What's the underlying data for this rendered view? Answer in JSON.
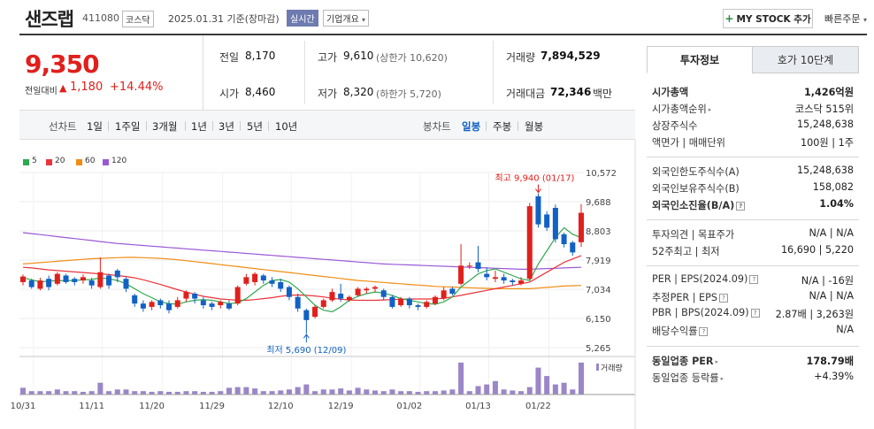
{
  "header": {
    "name": "샌즈랩",
    "code": "411080",
    "market": "코스닥",
    "date": "2025.01.31 기준(장마감)",
    "live": "실시간",
    "company_overview": "기업개요",
    "mystock_button": "MY STOCK 추가",
    "quick_order": "빠른주문"
  },
  "price": {
    "current": "9,350",
    "change_label": "전일대비",
    "change": "1,180",
    "change_pct": "+14.44%"
  },
  "info": {
    "prev_label": "전일",
    "prev": "8,170",
    "open_label": "시가",
    "open": "8,460",
    "high_label": "고가",
    "high": "9,610",
    "upper_limit": "(상한가 10,620)",
    "low_label": "저가",
    "low": "8,320",
    "lower_limit": "(하한가 5,720)",
    "volume_label": "거래량",
    "volume": "7,894,529",
    "amount_label": "거래대금",
    "amount": "72,346",
    "amount_unit": "백만"
  },
  "period_bar": {
    "line_label": "선차트",
    "line_items": [
      "1일",
      "1주일",
      "3개월",
      "1년",
      "3년",
      "5년",
      "10년"
    ],
    "candle_label": "봉차트",
    "candle_items": [
      "일봉",
      "주봉",
      "월봉"
    ],
    "candle_active": "일봉"
  },
  "colors": {
    "up": "#e0201c",
    "down": "#1261c4",
    "ma5": "#2fa84f",
    "ma20": "#e8343a",
    "ma60": "#f08c14",
    "ma120": "#9a58d6",
    "volume": "#9b86c8"
  },
  "chart_data": {
    "type": "candlestick",
    "legend": [
      "5",
      "20",
      "60",
      "120"
    ],
    "y_ticks": [
      "10,572",
      "9,688",
      "8,803",
      "7,919",
      "7,034",
      "6,150",
      "5,265"
    ],
    "ylim": [
      5265,
      10572
    ],
    "x_ticks": [
      "10/31",
      "11/11",
      "11/20",
      "11/29",
      "12/10",
      "12/19",
      "01/02",
      "01/13",
      "01/22"
    ],
    "high_annotation": "최고 9,940 (01/17)",
    "low_annotation": "최저 5,690 (12/09)",
    "volume_label": "거래량",
    "candles": [
      [
        7250,
        7420,
        7150,
        7480
      ],
      [
        7300,
        7100,
        7050,
        7350
      ],
      [
        7050,
        7300,
        7000,
        7380
      ],
      [
        7350,
        7100,
        7000,
        7450
      ],
      [
        7200,
        7500,
        7150,
        7550
      ],
      [
        7450,
        7250,
        7200,
        7500
      ],
      [
        7350,
        7250,
        7150,
        7400
      ],
      [
        7300,
        7400,
        7200,
        7480
      ],
      [
        7300,
        7150,
        7050,
        7380
      ],
      [
        7100,
        7550,
        7050,
        8000
      ],
      [
        7450,
        7150,
        7050,
        7500
      ],
      [
        7600,
        7400,
        7250,
        7650
      ],
      [
        7350,
        7050,
        6950,
        7400
      ],
      [
        6850,
        6600,
        6500,
        6900
      ],
      [
        6600,
        6450,
        6350,
        6700
      ],
      [
        6500,
        6650,
        6400,
        6700
      ],
      [
        6700,
        6550,
        6450,
        6750
      ],
      [
        6600,
        6400,
        6300,
        6700
      ],
      [
        6500,
        6700,
        6450,
        6800
      ],
      [
        6750,
        6950,
        6650,
        7000
      ],
      [
        6900,
        6750,
        6600,
        6950
      ],
      [
        6700,
        6550,
        6450,
        6800
      ],
      [
        6600,
        6500,
        6400,
        6650
      ],
      [
        6550,
        6650,
        6450,
        6700
      ],
      [
        6600,
        6450,
        6400,
        6700
      ],
      [
        6600,
        7100,
        6550,
        7150
      ],
      [
        7200,
        7400,
        7150,
        7500
      ],
      [
        7250,
        7500,
        7150,
        7550
      ],
      [
        7450,
        7300,
        7200,
        7500
      ],
      [
        7300,
        7200,
        7100,
        7400
      ],
      [
        7250,
        7050,
        6950,
        7350
      ],
      [
        7100,
        6800,
        6700,
        7150
      ],
      [
        6800,
        6450,
        6350,
        6900
      ],
      [
        6400,
        6100,
        5690,
        6450
      ],
      [
        6200,
        6500,
        6150,
        6550
      ],
      [
        6500,
        6700,
        6450,
        6750
      ],
      [
        6700,
        6950,
        6650,
        7050
      ],
      [
        6900,
        6750,
        6650,
        7200
      ],
      [
        6700,
        6800,
        6650,
        6850
      ],
      [
        6850,
        7050,
        6800,
        7100
      ],
      [
        7000,
        7050,
        6900,
        7100
      ],
      [
        7050,
        7100,
        6950,
        7150
      ],
      [
        7000,
        6800,
        6700,
        7050
      ],
      [
        6800,
        6500,
        6450,
        6850
      ],
      [
        6550,
        6750,
        6500,
        6800
      ],
      [
        6750,
        6550,
        6450,
        6800
      ],
      [
        6550,
        6500,
        6400,
        6600
      ],
      [
        6500,
        6650,
        6450,
        6700
      ],
      [
        6600,
        6800,
        6550,
        6850
      ],
      [
        6750,
        7000,
        6700,
        7100
      ],
      [
        7050,
        6900,
        6850,
        7100
      ],
      [
        7200,
        7750,
        7150,
        8400
      ],
      [
        7750,
        7750,
        7650,
        7850
      ],
      [
        7850,
        7650,
        7550,
        8350
      ],
      [
        7500,
        7400,
        7300,
        7700
      ],
      [
        7350,
        7400,
        7250,
        7600
      ],
      [
        7400,
        7300,
        7200,
        7500
      ],
      [
        7300,
        7250,
        7150,
        7350
      ],
      [
        7200,
        7300,
        7150,
        7400
      ],
      [
        7350,
        9550,
        7300,
        9650
      ],
      [
        9850,
        9000,
        8900,
        9940
      ],
      [
        9300,
        8900,
        8800,
        9400
      ],
      [
        9500,
        8550,
        8450,
        9600
      ],
      [
        8700,
        8400,
        8300,
        8750
      ],
      [
        8450,
        8150,
        8050,
        8500
      ],
      [
        8460,
        9350,
        8320,
        9610
      ]
    ],
    "ma5": [
      7380,
      7320,
      7260,
      7280,
      7300,
      7290,
      7300,
      7320,
      7330,
      7380,
      7350,
      7300,
      7200,
      7050,
      6900,
      6780,
      6650,
      6600,
      6580,
      6650,
      6700,
      6720,
      6700,
      6650,
      6600,
      6620,
      6750,
      6950,
      7150,
      7300,
      7330,
      7250,
      7050,
      6800,
      6550,
      6400,
      6350,
      6500,
      6700,
      6820,
      6900,
      6950,
      6920,
      6850,
      6750,
      6700,
      6650,
      6600,
      6580,
      6650,
      6800,
      7100,
      7300,
      7500,
      7600,
      7650,
      7550,
      7450,
      7350,
      7300,
      7800,
      8200,
      8600,
      8900,
      8700,
      8600
    ],
    "ma20": [
      7700,
      7680,
      7650,
      7620,
      7600,
      7580,
      7560,
      7540,
      7520,
      7500,
      7480,
      7450,
      7420,
      7380,
      7320,
      7250,
      7180,
      7100,
      7020,
      6950,
      6880,
      6820,
      6780,
      6740,
      6720,
      6700,
      6700,
      6720,
      6750,
      6780,
      6820,
      6850,
      6860,
      6850,
      6830,
      6800,
      6760,
      6730,
      6710,
      6700,
      6700,
      6700,
      6710,
      6720,
      6730,
      6740,
      6740,
      6740,
      6740,
      6760,
      6800,
      6850,
      6900,
      6950,
      7000,
      7050,
      7100,
      7150,
      7200,
      7250,
      7400,
      7550,
      7700,
      7850,
      7950,
      8050
    ],
    "ma60": [
      7800,
      7820,
      7840,
      7860,
      7880,
      7900,
      7920,
      7940,
      7960,
      7970,
      7980,
      7990,
      8000,
      8000,
      7990,
      7980,
      7970,
      7950,
      7930,
      7900,
      7870,
      7840,
      7810,
      7780,
      7750,
      7720,
      7690,
      7660,
      7630,
      7600,
      7570,
      7540,
      7510,
      7480,
      7450,
      7420,
      7390,
      7360,
      7330,
      7300,
      7280,
      7260,
      7240,
      7220,
      7200,
      7180,
      7160,
      7140,
      7120,
      7110,
      7100,
      7090,
      7080,
      7070,
      7060,
      7050,
      7050,
      7050,
      7050,
      7050,
      7070,
      7090,
      7110,
      7130,
      7140,
      7150
    ],
    "ma120": [
      8750,
      8720,
      8690,
      8660,
      8630,
      8600,
      8570,
      8540,
      8510,
      8480,
      8450,
      8420,
      8400,
      8380,
      8360,
      8340,
      8320,
      8300,
      8280,
      8260,
      8240,
      8220,
      8200,
      8180,
      8160,
      8140,
      8120,
      8100,
      8080,
      8060,
      8040,
      8020,
      8000,
      7980,
      7960,
      7940,
      7920,
      7900,
      7880,
      7860,
      7840,
      7820,
      7800,
      7790,
      7780,
      7770,
      7760,
      7750,
      7740,
      7730,
      7720,
      7710,
      7700,
      7690,
      7680,
      7670,
      7660,
      7650,
      7640,
      7640,
      7650,
      7660,
      7670,
      7680,
      7690,
      7700
    ],
    "volume": [
      0.2,
      0.1,
      0.1,
      0.1,
      0.15,
      0.1,
      0.1,
      0.08,
      0.1,
      0.35,
      0.1,
      0.15,
      0.15,
      0.1,
      0.1,
      0.08,
      0.1,
      0.08,
      0.08,
      0.1,
      0.1,
      0.08,
      0.08,
      0.1,
      0.2,
      0.22,
      0.22,
      0.18,
      0.1,
      0.1,
      0.12,
      0.15,
      0.22,
      0.3,
      0.1,
      0.15,
      0.15,
      0.18,
      0.12,
      0.2,
      0.15,
      0.12,
      0.1,
      0.15,
      0.1,
      0.1,
      0.08,
      0.1,
      0.1,
      0.12,
      0.15,
      0.95,
      0.1,
      0.25,
      0.3,
      0.4,
      0.15,
      0.12,
      0.1,
      0.22,
      0.8,
      0.55,
      0.3,
      0.35,
      0.15,
      0.95
    ]
  },
  "panel": {
    "tab_info": "투자정보",
    "tab_hoga": "호가 10단계",
    "market_cap_label": "시가총액",
    "market_cap": "1,426억원",
    "rank_label": "시가총액순위",
    "rank": "코스닥 515위",
    "shares_label": "상장주식수",
    "shares": "15,248,638",
    "face_label": "액면가 | 매매단위",
    "face": "100원 | 1주",
    "foreign_limit_label": "외국인한도주식수(A)",
    "foreign_limit": "15,248,638",
    "foreign_hold_label": "외국인보유주식수(B)",
    "foreign_hold": "158,082",
    "foreign_ratio_label": "외국인소진율(B/A)",
    "foreign_ratio": "1.04%",
    "opinion_label": "투자의견 | 목표주가",
    "opinion": "N/A | N/A",
    "week52_label": "52주최고 | 최저",
    "week52": "16,690 | 5,220",
    "per_label": "PER | EPS(2024.09)",
    "per": "N/A | -16원",
    "est_per_label": "추정PER | EPS",
    "est_per": "N/A | N/A",
    "pbr_label": "PBR | BPS(2024.09)",
    "pbr": "2.87배 | 3,263원",
    "dividend_label": "배당수익률",
    "dividend": "N/A",
    "ind_per_label": "동일업종 PER",
    "ind_per": "178.79배",
    "ind_rate_label": "동일업종 등락률",
    "ind_rate": "+4.39%"
  }
}
